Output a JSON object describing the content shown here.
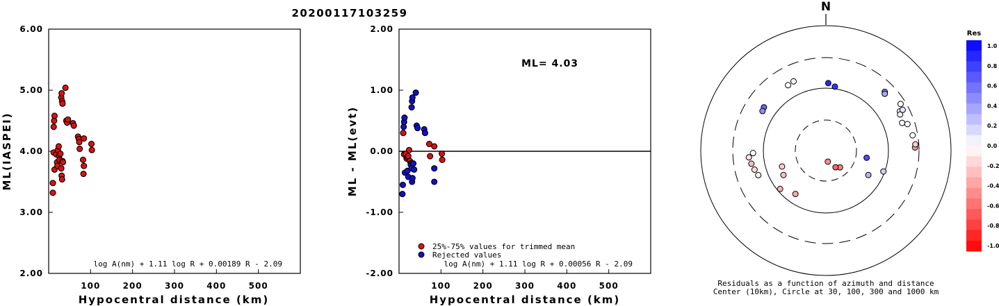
{
  "title": "20200117103259",
  "chart_data": [
    {
      "type": "scatter",
      "id": "ml",
      "ylabel": "ML(IASPEI)",
      "xlabel": "Hypocentral distance (km)",
      "xlim": [
        0,
        600
      ],
      "ylim": [
        2,
        6
      ],
      "xticks": [
        "100",
        "200",
        "300",
        "400",
        "500"
      ],
      "yticks": [
        "2.00",
        "3.00",
        "4.00",
        "5.00",
        "6.00"
      ],
      "formula": "log A(nm) + 1.11 log R + 0.00189 R - 2.09",
      "series": [
        {
          "color": "#dd1111",
          "points": [
            [
              10,
              3.32
            ],
            [
              10,
              3.48
            ],
            [
              12,
              4.4
            ],
            [
              13,
              4.5
            ],
            [
              14,
              4.58
            ],
            [
              12,
              3.98
            ],
            [
              14,
              3.7
            ],
            [
              18,
              3.95
            ],
            [
              20,
              3.82
            ],
            [
              21,
              3.76
            ],
            [
              22,
              4.02
            ],
            [
              24,
              4.08
            ],
            [
              25,
              3.92
            ],
            [
              26,
              3.86
            ],
            [
              28,
              3.96
            ],
            [
              30,
              3.72
            ],
            [
              31,
              3.6
            ],
            [
              32,
              3.54
            ],
            [
              33,
              3.84
            ],
            [
              34,
              3.82
            ],
            [
              30,
              4.88
            ],
            [
              31,
              4.95
            ],
            [
              32,
              4.82
            ],
            [
              33,
              4.78
            ],
            [
              40,
              5.04
            ],
            [
              42,
              4.5
            ],
            [
              44,
              4.47
            ],
            [
              46,
              4.52
            ],
            [
              58,
              4.46
            ],
            [
              60,
              4.42
            ],
            [
              70,
              4.24
            ],
            [
              72,
              4.2
            ],
            [
              73,
              4.15
            ],
            [
              74,
              4.04
            ],
            [
              84,
              4.21
            ],
            [
              82,
              3.86
            ],
            [
              84,
              3.76
            ],
            [
              83,
              3.63
            ],
            [
              102,
              4.12
            ],
            [
              103,
              4.02
            ]
          ]
        }
      ]
    },
    {
      "type": "scatter",
      "id": "residual",
      "ylabel": "ML - ML(evt)",
      "xlabel": "Hypocentral distance (km)",
      "xlim": [
        0,
        600
      ],
      "ylim": [
        -2,
        2
      ],
      "xticks": [
        "100",
        "200",
        "300",
        "400",
        "500"
      ],
      "yticks": [
        "-2.00",
        "-1.00",
        "0.00",
        "1.00",
        "2.00"
      ],
      "annotation": "ML= 4.03",
      "formula": "log A(nm) + 1.11 log R + 0.00056 R - 2.09",
      "legend": [
        {
          "label": "25%-75% values for trimmed mean",
          "color": "#dd1111"
        },
        {
          "label": "Rejected values",
          "color": "#1111cc"
        }
      ],
      "series": [
        {
          "name": "25%-75% values for trimmed mean",
          "color": "#dd1111",
          "points": [
            [
              10,
              0.3
            ],
            [
              12,
              -0.05
            ],
            [
              16,
              -0.04
            ],
            [
              18,
              -0.12
            ],
            [
              20,
              -0.1
            ],
            [
              22,
              -0.08
            ],
            [
              24,
              0.02
            ],
            [
              26,
              -0.16
            ],
            [
              28,
              -0.2
            ],
            [
              72,
              0.12
            ],
            [
              74,
              -0.08
            ],
            [
              84,
              0.08
            ],
            [
              102,
              -0.04
            ],
            [
              103,
              -0.14
            ]
          ]
        },
        {
          "name": "Rejected values",
          "color": "#1111cc",
          "points": [
            [
              8,
              -0.7
            ],
            [
              9,
              -0.55
            ],
            [
              11,
              0.4
            ],
            [
              12,
              0.48
            ],
            [
              13,
              0.55
            ],
            [
              14,
              -0.35
            ],
            [
              20,
              -0.32
            ],
            [
              22,
              -0.42
            ],
            [
              28,
              -0.22
            ],
            [
              30,
              -0.28
            ],
            [
              31,
              -0.5
            ],
            [
              32,
              -0.44
            ],
            [
              34,
              -0.2
            ],
            [
              36,
              -0.3
            ],
            [
              30,
              0.72
            ],
            [
              31,
              0.82
            ],
            [
              32,
              0.88
            ],
            [
              40,
              0.96
            ],
            [
              42,
              0.42
            ],
            [
              44,
              0.38
            ],
            [
              60,
              0.36
            ],
            [
              62,
              0.3
            ],
            [
              84,
              -0.28
            ],
            [
              84,
              -0.5
            ]
          ]
        }
      ]
    },
    {
      "type": "polar-scatter",
      "id": "azimuth",
      "north_label": "N",
      "caption1": "Residuals as a function of azimuth and distance",
      "caption2": "Center (10km), Circle at 30, 100, 300 and 1000 km",
      "colorbar": {
        "title": "Res",
        "tick_labels": [
          "1.0",
          "0.8",
          "0.6",
          "0.4",
          "0.2",
          "0.0",
          "-0.2",
          "-0.4",
          "-0.6",
          "-0.8",
          "-1.0"
        ],
        "min": -1.0,
        "max": 1.0
      },
      "points": [
        {
          "az": 335,
          "dist": 165,
          "res": 0.05
        },
        {
          "az": 330,
          "dist": 160,
          "res": 0.0
        },
        {
          "az": 305,
          "dist": 160,
          "res": 0.6
        },
        {
          "az": 302,
          "dist": 155,
          "res": 0.45
        },
        {
          "az": 2,
          "dist": 120,
          "res": 0.85
        },
        {
          "az": 8,
          "dist": 108,
          "res": 0.8
        },
        {
          "az": 45,
          "dist": 210,
          "res": 0.5
        },
        {
          "az": 46,
          "dist": 200,
          "res": 0.35
        },
        {
          "az": 62,
          "dist": 215,
          "res": 0.0
        },
        {
          "az": 64,
          "dist": 205,
          "res": 0.05
        },
        {
          "az": 58,
          "dist": 250,
          "res": 0.0
        },
        {
          "az": 62,
          "dist": 240,
          "res": 0.1
        },
        {
          "az": 70,
          "dist": 195,
          "res": 0.0
        },
        {
          "az": 72,
          "dist": 230,
          "res": 0.0
        },
        {
          "az": 80,
          "dist": 250,
          "res": 0.0
        },
        {
          "az": 88,
          "dist": 260,
          "res": -0.4
        },
        {
          "az": 86,
          "dist": 265,
          "res": -0.2
        },
        {
          "az": 110,
          "dist": 95,
          "res": 0.2
        },
        {
          "az": 120,
          "dist": 60,
          "res": 0.3
        },
        {
          "az": 100,
          "dist": 45,
          "res": 0.7
        },
        {
          "az": 140,
          "dist": 22,
          "res": -0.5
        },
        {
          "az": 150,
          "dist": 20,
          "res": -0.6
        },
        {
          "az": 170,
          "dist": 15,
          "res": -0.45
        },
        {
          "az": 240,
          "dist": 60,
          "res": -0.25
        },
        {
          "az": 250,
          "dist": 55,
          "res": -0.2
        },
        {
          "az": 215,
          "dist": 70,
          "res": -0.35
        },
        {
          "az": 230,
          "dist": 90,
          "res": -0.3
        },
        {
          "az": 255,
          "dist": 150,
          "res": -0.15
        },
        {
          "az": 260,
          "dist": 160,
          "res": -0.25
        },
        {
          "az": 265,
          "dist": 170,
          "res": -0.1
        },
        {
          "az": 268,
          "dist": 145,
          "res": 0.0
        },
        {
          "az": 250,
          "dist": 140,
          "res": -0.05
        }
      ]
    }
  ]
}
